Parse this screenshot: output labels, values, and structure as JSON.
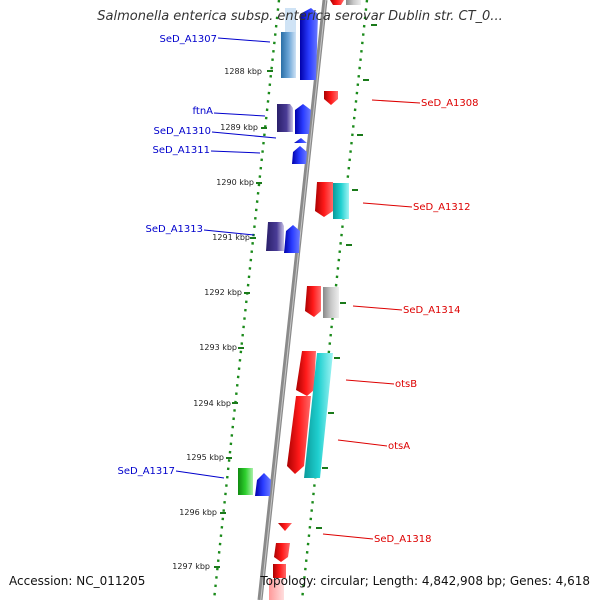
{
  "header": {
    "title": "Salmonella enterica subsp. enterica serovar Dublin str. CT_0..."
  },
  "footer": {
    "accession": "Accession: NC_011205",
    "topology": "Topology: circular; Length: 4,842,908 bp; Genes: 4,618"
  },
  "colors": {
    "forward_label": "#0000cc",
    "reverse_label": "#dd0000",
    "tick": "#1a7a1a",
    "backbone": "#888888"
  },
  "ticks": [
    "1288 kbp",
    "1289 kbp",
    "1290 kbp",
    "1291 kbp",
    "1292 kbp",
    "1293 kbp",
    "1294 kbp",
    "1295 kbp",
    "1296 kbp",
    "1297 kbp"
  ],
  "forward_labels": [
    "SeD_A1307",
    "ftnA",
    "SeD_A1310",
    "SeD_A1311",
    "SeD_A1313",
    "SeD_A1317"
  ],
  "reverse_labels": [
    "SeD_A1308",
    "SeD_A1312",
    "SeD_A1314",
    "otsB",
    "otsA",
    "SeD_A1318"
  ]
}
